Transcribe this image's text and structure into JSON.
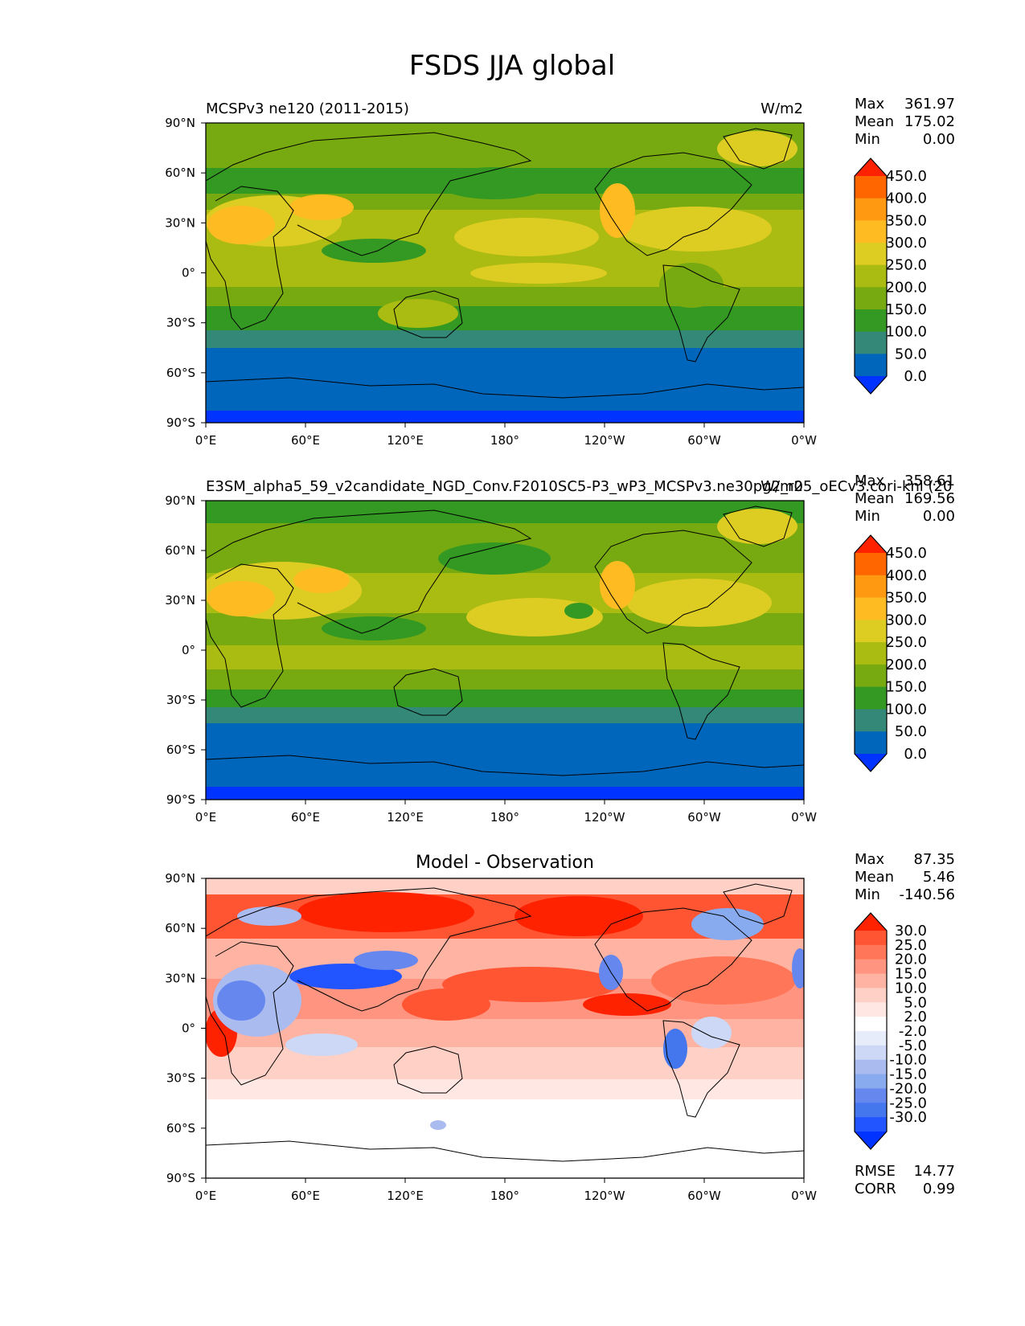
{
  "page_title": "FSDS JJA global",
  "colors": {
    "absolute_levels": [
      "#0033ff",
      "#0066bb",
      "#338877",
      "#339922",
      "#77aa11",
      "#aabb11",
      "#ddcc22",
      "#ffbb22",
      "#ff9911",
      "#ff6600",
      "#ff2200"
    ],
    "diff_levels": [
      "#0033ff",
      "#2255ff",
      "#4477ee",
      "#6688ee",
      "#88aaee",
      "#aabbf0",
      "#ccd8f5",
      "#e6ecfa",
      "#ffffff",
      "#ffe8e4",
      "#ffd0c6",
      "#ffb3a2",
      "#ff9580",
      "#ff7758",
      "#ff5533",
      "#ff2200"
    ],
    "land_outline": "#000000"
  },
  "chart_data": [
    {
      "type": "heatmap",
      "title_left": "MCSPv3 ne120 (2011-2015)",
      "title_right": "W/m2",
      "ylabel": "",
      "xlabel": "",
      "x_ticks": [
        "0°E",
        "60°E",
        "120°E",
        "180°",
        "120°W",
        "60°W",
        "0°W"
      ],
      "y_ticks": [
        "90°N",
        "60°N",
        "30°N",
        "0°",
        "30°S",
        "60°S",
        "90°S"
      ],
      "xlim": [
        0,
        360
      ],
      "ylim": [
        -90,
        90
      ],
      "stats": [
        {
          "label": "Max",
          "value": "361.97"
        },
        {
          "label": "Mean",
          "value": "175.02"
        },
        {
          "label": "Min",
          "value": "0.00"
        }
      ],
      "colorbar_labels": [
        "450.0",
        "400.0",
        "350.0",
        "300.0",
        "250.0",
        "200.0",
        "150.0",
        "100.0",
        "50.0",
        "0.0"
      ],
      "colorbar_type": "absolute"
    },
    {
      "type": "heatmap",
      "title_left": "E3SM_alpha5_59_v2candidate_NGD_Conv.F2010SC5-P3_wP3_MCSPv3.ne30pg2_r05_oECv3.cori-knl (20",
      "title_right": "W/m2",
      "x_ticks": [
        "0°E",
        "60°E",
        "120°E",
        "180°",
        "120°W",
        "60°W",
        "0°W"
      ],
      "y_ticks": [
        "90°N",
        "60°N",
        "30°N",
        "0°",
        "30°S",
        "60°S",
        "90°S"
      ],
      "xlim": [
        0,
        360
      ],
      "ylim": [
        -90,
        90
      ],
      "stats": [
        {
          "label": "Max",
          "value": "358.61"
        },
        {
          "label": "Mean",
          "value": "169.56"
        },
        {
          "label": "Min",
          "value": "0.00"
        }
      ],
      "colorbar_labels": [
        "450.0",
        "400.0",
        "350.0",
        "300.0",
        "250.0",
        "200.0",
        "150.0",
        "100.0",
        "50.0",
        "0.0"
      ],
      "colorbar_type": "absolute"
    },
    {
      "type": "heatmap",
      "title_center": "Model - Observation",
      "x_ticks": [
        "0°E",
        "60°E",
        "120°E",
        "180°",
        "120°W",
        "60°W",
        "0°W"
      ],
      "y_ticks": [
        "90°N",
        "60°N",
        "30°N",
        "0°",
        "30°S",
        "60°S",
        "90°S"
      ],
      "xlim": [
        0,
        360
      ],
      "ylim": [
        -90,
        90
      ],
      "stats": [
        {
          "label": "Max",
          "value": "87.35"
        },
        {
          "label": "Mean",
          "value": "5.46"
        },
        {
          "label": "Min",
          "value": "-140.56"
        }
      ],
      "colorbar_labels": [
        "30.0",
        "25.0",
        "20.0",
        "15.0",
        "10.0",
        "5.0",
        "2.0",
        "-2.0",
        "-5.0",
        "-10.0",
        "-15.0",
        "-20.0",
        "-25.0",
        "-30.0"
      ],
      "colorbar_type": "diff",
      "metrics": [
        {
          "label": "RMSE",
          "value": "14.77"
        },
        {
          "label": "CORR",
          "value": "0.99"
        }
      ]
    }
  ]
}
